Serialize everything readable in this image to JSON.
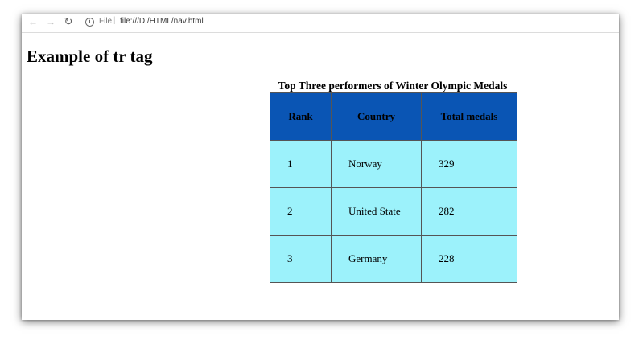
{
  "browser": {
    "back_icon": "arrow-left-icon",
    "forward_icon": "arrow-right-icon",
    "reload_icon": "reload-icon",
    "info_icon": "info-icon",
    "url_scheme": "File",
    "url_separator": "|",
    "url": "file:///D:/HTML/nav.html"
  },
  "page": {
    "heading": "Example of tr tag"
  },
  "table": {
    "caption": "Top Three performers of Winter Olympic Medals",
    "header_background": "#0a55b4",
    "row_background": "#9cf2fb",
    "columns": [
      "Rank",
      "Country",
      "Total medals"
    ],
    "rows": [
      {
        "rank": "1",
        "country": "Norway",
        "total": "329"
      },
      {
        "rank": "2",
        "country": "United State",
        "total": "282"
      },
      {
        "rank": "3",
        "country": "Germany",
        "total": "228"
      }
    ]
  }
}
